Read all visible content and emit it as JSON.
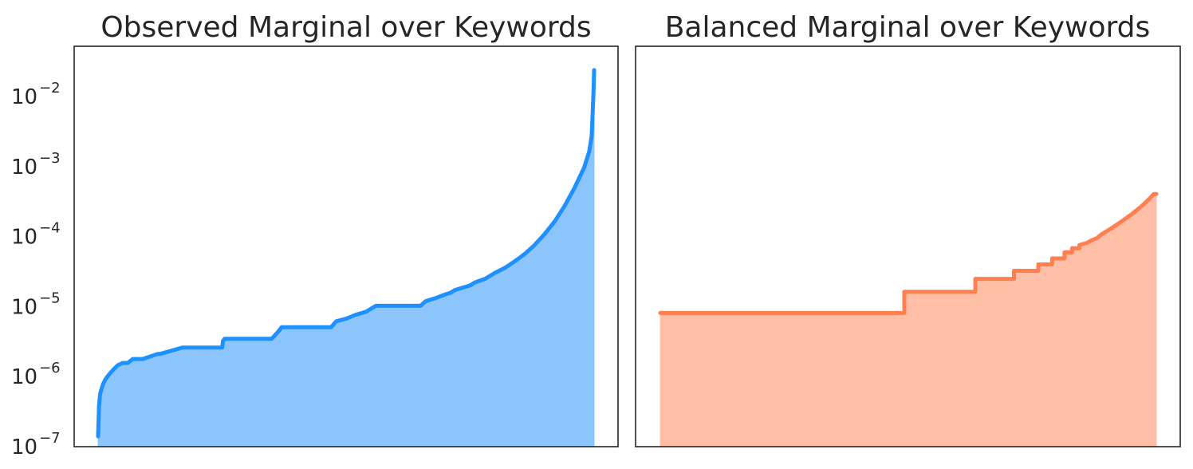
{
  "chart_data": [
    {
      "type": "area",
      "title": "Observed Marginal over Keywords",
      "yscale": "log",
      "ylim": [
        1e-07,
        0.04
      ],
      "yticks": [
        {
          "base": "10",
          "exp": "−2",
          "value": 0.01
        },
        {
          "base": "10",
          "exp": "−3",
          "value": 0.001
        },
        {
          "base": "10",
          "exp": "−4",
          "value": 0.0001
        },
        {
          "base": "10",
          "exp": "−5",
          "value": 1e-05
        },
        {
          "base": "10",
          "exp": "−6",
          "value": 1e-06
        },
        {
          "base": "10",
          "exp": "−7",
          "value": 1e-07
        }
      ],
      "x_tick_labels": "none",
      "grid": false,
      "color": "#1E90FF",
      "fill_color": "#8CC4FC",
      "x": [
        0.0,
        0.002,
        0.004,
        0.007,
        0.01,
        0.015,
        0.02,
        0.025,
        0.03,
        0.035,
        0.04,
        0.05,
        0.06,
        0.07,
        0.08,
        0.09,
        0.12,
        0.125,
        0.17,
        0.172,
        0.25,
        0.252,
        0.255,
        0.35,
        0.365,
        0.37,
        0.47,
        0.48,
        0.5,
        0.52,
        0.54,
        0.56,
        0.57,
        0.58,
        0.65,
        0.66,
        0.68,
        0.7,
        0.71,
        0.72,
        0.75,
        0.76,
        0.78,
        0.8,
        0.82,
        0.84,
        0.86,
        0.88,
        0.9,
        0.92,
        0.94,
        0.96,
        0.98,
        0.99,
        0.995,
        0.997,
        0.999,
        1.0
      ],
      "y": [
        1.3e-07,
        3.6e-07,
        5.2e-07,
        6.2e-07,
        7.2e-07,
        8.5e-07,
        9.5e-07,
        1.05e-06,
        1.15e-06,
        1.25e-06,
        1.35e-06,
        1.45e-06,
        1.45e-06,
        1.65e-06,
        1.65e-06,
        1.65e-06,
        1.95e-06,
        1.95e-06,
        2.4e-06,
        2.4e-06,
        2.4e-06,
        3e-06,
        3.2e-06,
        3.2e-06,
        4.2e-06,
        4.7e-06,
        4.7e-06,
        5.7e-06,
        6.2e-06,
        7.1e-06,
        7.8e-06,
        9.5e-06,
        9.5e-06,
        9.5e-06,
        9.5e-06,
        1.1e-05,
        1.22e-05,
        1.38e-05,
        1.45e-05,
        1.6e-05,
        1.85e-05,
        2.05e-05,
        2.3e-05,
        2.8e-05,
        3.3e-05,
        4.1e-05,
        5.2e-05,
        7e-05,
        0.0001,
        0.00015,
        0.00025,
        0.00045,
        0.0009,
        0.0015,
        0.0025,
        0.005,
        0.012,
        0.022
      ]
    },
    {
      "type": "area",
      "title": "Balanced Marginal over Keywords",
      "yscale": "log",
      "ylim": [
        1e-07,
        0.04
      ],
      "x_tick_labels": "none",
      "y_tick_labels": "none",
      "grid": false,
      "color": "#FF7F50",
      "fill_color": "#FFBFA7",
      "x": [
        0.0,
        0.492,
        0.492,
        0.635,
        0.635,
        0.713,
        0.713,
        0.762,
        0.762,
        0.79,
        0.79,
        0.815,
        0.815,
        0.83,
        0.83,
        0.845,
        0.845,
        0.86,
        0.87,
        0.88,
        0.89,
        0.91,
        0.93,
        0.95,
        0.97,
        0.985,
        0.995,
        1.0
      ],
      "y": [
        7.5e-06,
        7.5e-06,
        1.5e-05,
        1.5e-05,
        2.3e-05,
        2.3e-05,
        3e-05,
        3e-05,
        3.7e-05,
        3.7e-05,
        4.5e-05,
        4.5e-05,
        5.5e-05,
        5.5e-05,
        6.3e-05,
        6.3e-05,
        7e-05,
        7.5e-05,
        8.2e-05,
        8.8e-05,
        0.0001,
        0.000122,
        0.000152,
        0.000192,
        0.00025,
        0.000315,
        0.000375,
        0.000375
      ]
    }
  ]
}
